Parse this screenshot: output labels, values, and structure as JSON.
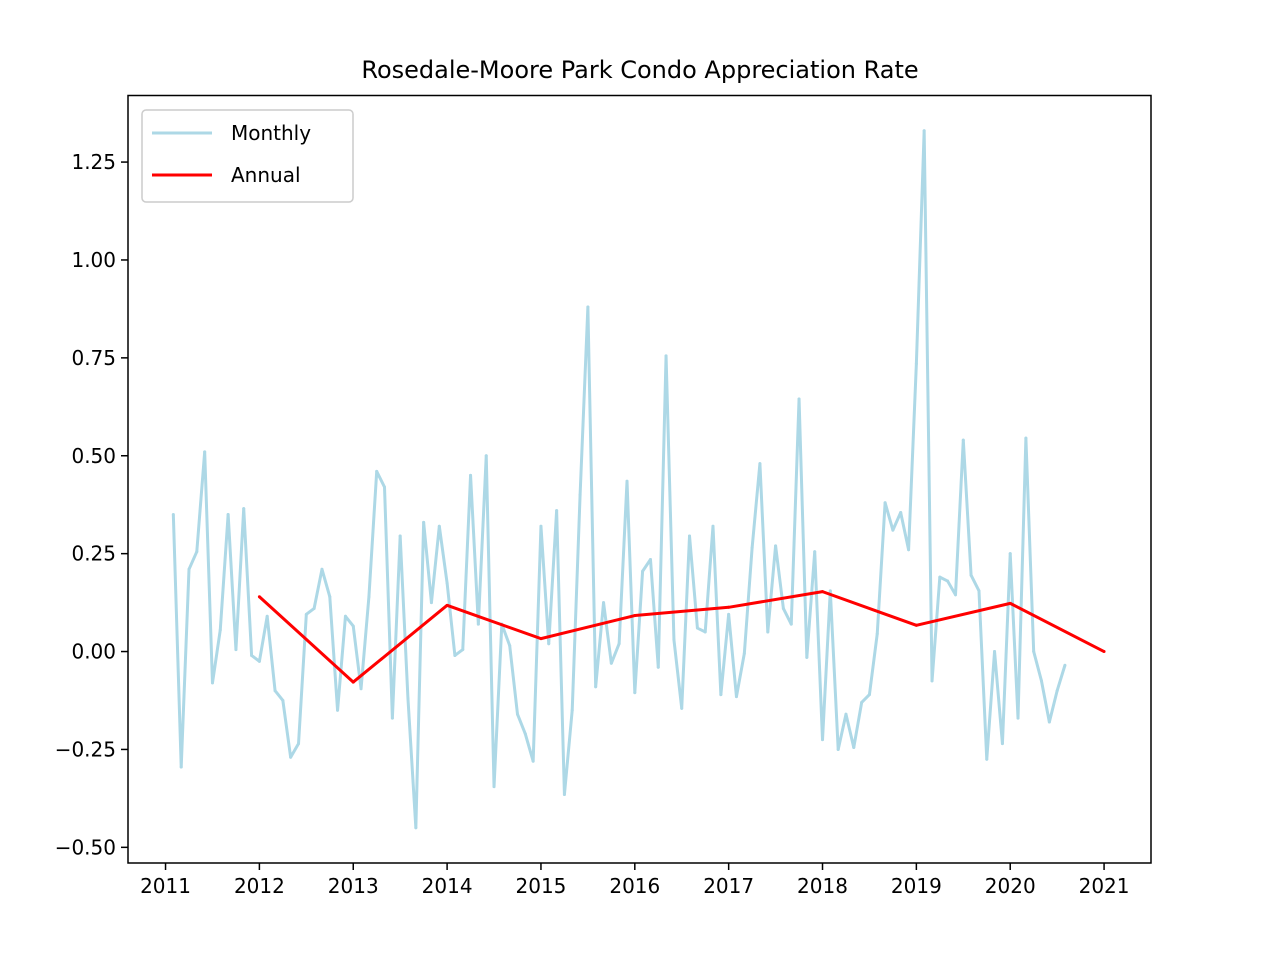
{
  "chart_data": {
    "type": "line",
    "title": "Rosedale-Moore Park Condo Appreciation Rate",
    "xlabel": "",
    "ylabel": "",
    "xlim": [
      2010.6,
      2021.5
    ],
    "ylim": [
      -0.54,
      1.42
    ],
    "x_ticks": [
      2011,
      2012,
      2013,
      2014,
      2015,
      2016,
      2017,
      2018,
      2019,
      2020,
      2021
    ],
    "x_tick_labels": [
      "2011",
      "2012",
      "2013",
      "2014",
      "2015",
      "2016",
      "2017",
      "2018",
      "2019",
      "2020",
      "2021"
    ],
    "y_ticks": [
      -0.5,
      -0.25,
      0,
      0.25,
      0.5,
      0.75,
      1.0,
      1.25
    ],
    "y_tick_labels": [
      "−0.50",
      "−0.25",
      "0.00",
      "0.25",
      "0.50",
      "0.75",
      "1.00",
      "1.25"
    ],
    "legend": {
      "position": "upper-left"
    },
    "grid": false,
    "series": [
      {
        "name": "Monthly",
        "color": "#add8e6",
        "x": [
          2011.083,
          2011.167,
          2011.25,
          2011.333,
          2011.417,
          2011.5,
          2011.583,
          2011.667,
          2011.75,
          2011.833,
          2011.917,
          2012.0,
          2012.083,
          2012.167,
          2012.25,
          2012.333,
          2012.417,
          2012.5,
          2012.583,
          2012.667,
          2012.75,
          2012.833,
          2012.917,
          2013.0,
          2013.083,
          2013.167,
          2013.25,
          2013.333,
          2013.417,
          2013.5,
          2013.583,
          2013.667,
          2013.75,
          2013.833,
          2013.917,
          2014.0,
          2014.083,
          2014.167,
          2014.25,
          2014.333,
          2014.417,
          2014.5,
          2014.583,
          2014.667,
          2014.75,
          2014.833,
          2014.917,
          2015.0,
          2015.083,
          2015.167,
          2015.25,
          2015.333,
          2015.417,
          2015.5,
          2015.583,
          2015.667,
          2015.75,
          2015.833,
          2015.917,
          2016.0,
          2016.083,
          2016.167,
          2016.25,
          2016.333,
          2016.417,
          2016.5,
          2016.583,
          2016.667,
          2016.75,
          2016.833,
          2016.917,
          2017.0,
          2017.083,
          2017.167,
          2017.25,
          2017.333,
          2017.417,
          2017.5,
          2017.583,
          2017.667,
          2017.75,
          2017.833,
          2017.917,
          2018.0,
          2018.083,
          2018.167,
          2018.25,
          2018.333,
          2018.417,
          2018.5,
          2018.583,
          2018.667,
          2018.75,
          2018.833,
          2018.917,
          2019.0,
          2019.083,
          2019.167,
          2019.25,
          2019.333,
          2019.417,
          2019.5,
          2019.583,
          2019.667,
          2019.75,
          2019.833,
          2019.917,
          2020.0,
          2020.083,
          2020.167,
          2020.25,
          2020.333,
          2020.417,
          2020.5,
          2020.583
        ],
        "values": [
          0.35,
          -0.295,
          0.21,
          0.255,
          0.51,
          -0.08,
          0.055,
          0.35,
          0.005,
          0.365,
          -0.01,
          -0.025,
          0.09,
          -0.1,
          -0.125,
          -0.27,
          -0.235,
          0.095,
          0.11,
          0.21,
          0.14,
          -0.15,
          0.09,
          0.065,
          -0.095,
          0.14,
          0.46,
          0.42,
          -0.17,
          0.295,
          -0.12,
          -0.45,
          0.33,
          0.125,
          0.32,
          0.175,
          -0.01,
          0.005,
          0.45,
          0.07,
          0.5,
          -0.345,
          0.07,
          0.015,
          -0.16,
          -0.21,
          -0.28,
          0.32,
          0.02,
          0.36,
          -0.365,
          -0.15,
          0.4,
          0.88,
          -0.09,
          0.125,
          -0.03,
          0.02,
          0.435,
          -0.105,
          0.205,
          0.235,
          -0.04,
          0.755,
          0.03,
          -0.145,
          0.295,
          0.06,
          0.05,
          0.32,
          -0.11,
          0.095,
          -0.115,
          -0.005,
          0.265,
          0.48,
          0.05,
          0.27,
          0.11,
          0.07,
          0.645,
          -0.015,
          0.255,
          -0.225,
          0.155,
          -0.25,
          -0.16,
          -0.245,
          -0.13,
          -0.11,
          0.045,
          0.38,
          0.31,
          0.355,
          0.26,
          0.735,
          1.33,
          -0.075,
          0.19,
          0.18,
          0.145,
          0.54,
          0.195,
          0.155,
          -0.275,
          0.0,
          -0.235,
          0.25,
          -0.17,
          0.545,
          0.0,
          -0.075,
          -0.18,
          -0.1,
          -0.035
        ]
      },
      {
        "name": "Annual",
        "color": "#ff0000",
        "x": [
          2012,
          2013,
          2014,
          2015,
          2016,
          2017,
          2018,
          2019,
          2020,
          2021
        ],
        "values": [
          0.14,
          -0.078,
          0.118,
          0.033,
          0.092,
          0.113,
          0.153,
          0.067,
          0.123,
          0.0
        ]
      }
    ]
  }
}
